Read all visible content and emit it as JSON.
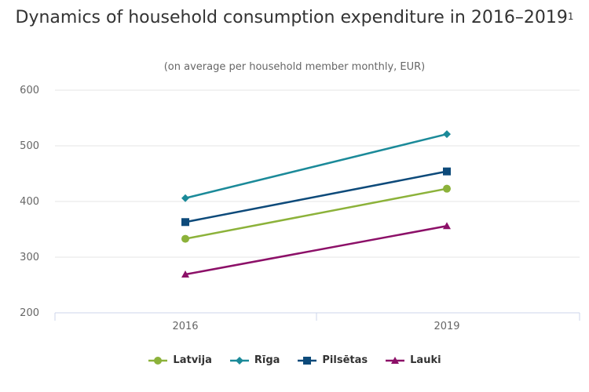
{
  "chart_data": {
    "type": "line",
    "title": "Dynamics of household consumption expenditure in 2016–2019",
    "title_footnote": "1",
    "subtitle": "(on average per household member monthly, EUR)",
    "xlabel": "",
    "ylabel": "",
    "categories": [
      "2016",
      "2019"
    ],
    "ylim": [
      200,
      600
    ],
    "yticks": [
      "200",
      "300",
      "400",
      "500",
      "600"
    ],
    "grid": true,
    "legend_position": "bottom",
    "series": [
      {
        "name": "Latvija",
        "values": [
          333,
          423
        ],
        "color": "#8cb23a",
        "marker": "circle"
      },
      {
        "name": "Rīga",
        "values": [
          406,
          521
        ],
        "color": "#1b8a99",
        "marker": "diamond"
      },
      {
        "name": "Pilsētas",
        "values": [
          363,
          454
        ],
        "color": "#0d4a7a",
        "marker": "square"
      },
      {
        "name": "Lauki",
        "values": [
          269,
          356
        ],
        "color": "#8c1068",
        "marker": "triangle"
      }
    ]
  }
}
